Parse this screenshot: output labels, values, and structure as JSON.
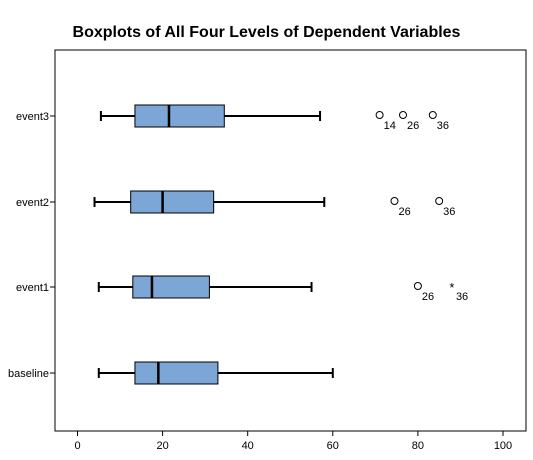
{
  "chart_data": {
    "type": "boxplot",
    "title": "Boxplots of All Four Levels of Dependent Variables",
    "xlabel": "",
    "ylabel": "",
    "xlim": [
      -8,
      105
    ],
    "xticks": [
      0,
      20,
      40,
      60,
      80,
      100
    ],
    "grid": false,
    "categories": [
      "baseline",
      "event1",
      "event2",
      "event3"
    ],
    "box_color": "#7ba6d6",
    "boxes": [
      {
        "category": "baseline",
        "whisker_low": 5,
        "q1": 13.5,
        "median": 19,
        "q3": 33,
        "whisker_high": 60,
        "outliers": []
      },
      {
        "category": "event1",
        "whisker_low": 5,
        "q1": 13,
        "median": 17.5,
        "q3": 31,
        "whisker_high": 55,
        "outliers": [
          {
            "value": 80,
            "label": "26",
            "marker": "circle"
          },
          {
            "value": 88,
            "label": "36",
            "marker": "star"
          }
        ]
      },
      {
        "category": "event2",
        "whisker_low": 4,
        "q1": 12.5,
        "median": 20,
        "q3": 32,
        "whisker_high": 58,
        "outliers": [
          {
            "value": 74.5,
            "label": "26",
            "marker": "circle"
          },
          {
            "value": 85,
            "label": "36",
            "marker": "circle"
          }
        ]
      },
      {
        "category": "event3",
        "whisker_low": 5.5,
        "q1": 13.5,
        "median": 21.5,
        "q3": 34.5,
        "whisker_high": 57,
        "outliers": [
          {
            "value": 71,
            "label": "14",
            "marker": "circle"
          },
          {
            "value": 76.5,
            "label": "26",
            "marker": "circle"
          },
          {
            "value": 83.5,
            "label": "36",
            "marker": "circle"
          }
        ]
      }
    ]
  }
}
